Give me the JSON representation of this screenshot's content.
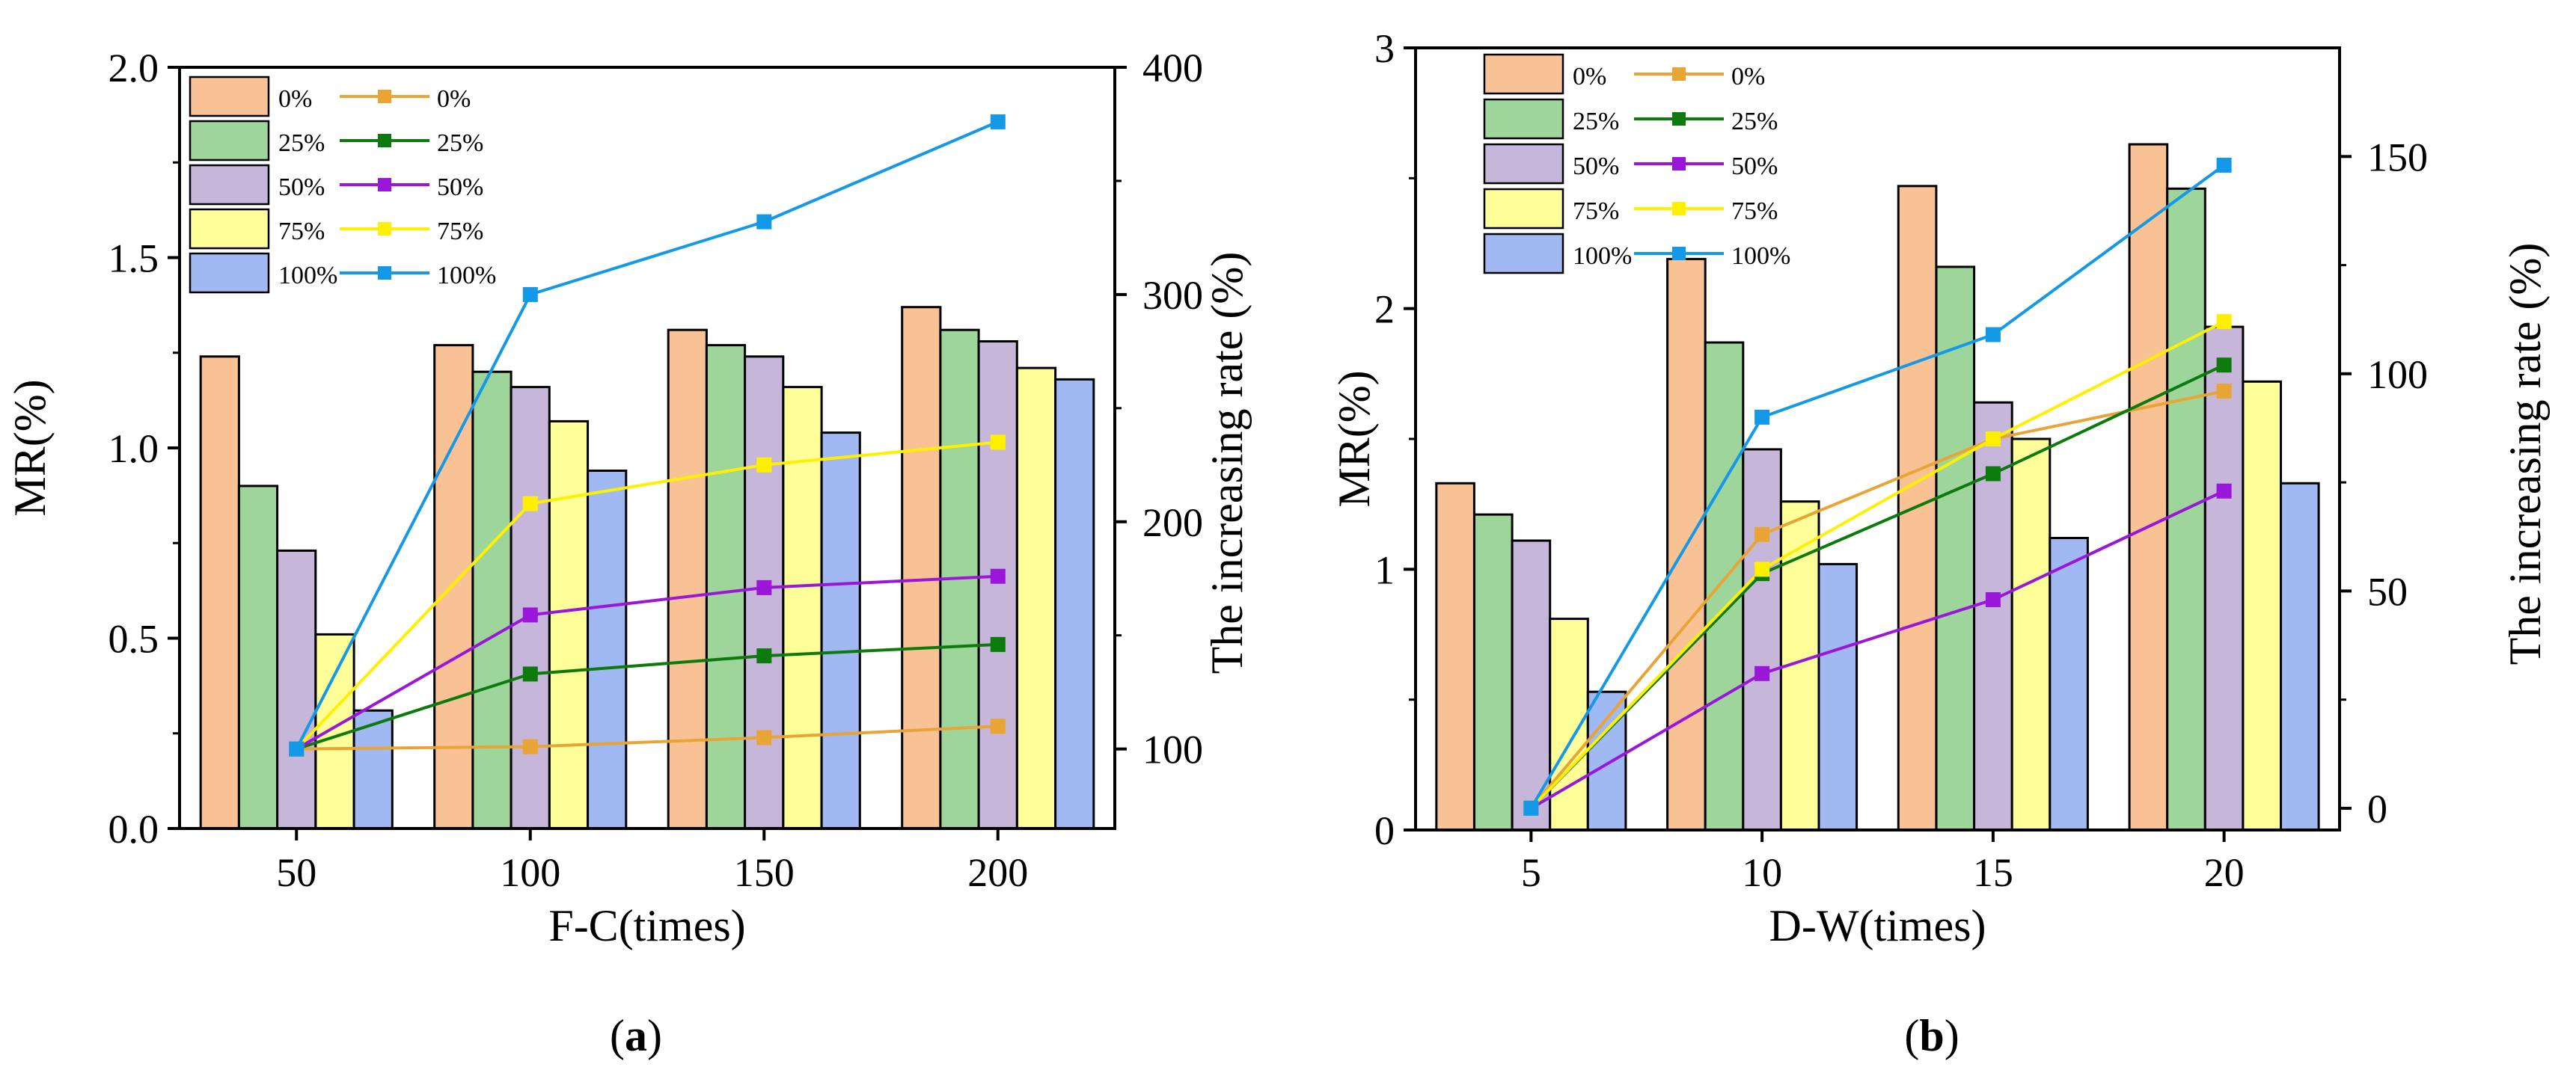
{
  "colors": {
    "bar": [
      "#F9C294",
      "#9DD59B",
      "#C6B6DA",
      "#FFFF99",
      "#A0B9F2"
    ],
    "line": [
      "#E8A435",
      "#0D7A0D",
      "#9A17D9",
      "#FFF000",
      "#1499E8"
    ]
  },
  "chart_data": [
    {
      "type": "bar+line",
      "panel_label": "(a)",
      "panel_letter": "a",
      "xlabel": "F-C(times)",
      "ylabel": "MR(%)",
      "y2label": "The increasing rate (%)",
      "categories": [
        "50",
        "100",
        "150",
        "200"
      ],
      "ylim": [
        0,
        2.0
      ],
      "yticks": [
        "0.0",
        "0.5",
        "1.0",
        "1.5",
        "2.0"
      ],
      "y2lim": [
        65,
        400
      ],
      "y2ticks": [
        "100",
        "200",
        "300",
        "400"
      ],
      "legend_position": "top-left",
      "bar_series": [
        {
          "name": "0%",
          "values": [
            1.24,
            1.27,
            1.31,
            1.37
          ]
        },
        {
          "name": "25%",
          "values": [
            0.9,
            1.2,
            1.27,
            1.31
          ]
        },
        {
          "name": "50%",
          "values": [
            0.73,
            1.16,
            1.24,
            1.28
          ]
        },
        {
          "name": "75%",
          "values": [
            0.51,
            1.07,
            1.16,
            1.21
          ]
        },
        {
          "name": "100%",
          "values": [
            0.31,
            0.94,
            1.04,
            1.18
          ]
        }
      ],
      "line_series": [
        {
          "name": "0%",
          "values": [
            100,
            101,
            105,
            110
          ]
        },
        {
          "name": "25%",
          "values": [
            100,
            133,
            141,
            146
          ]
        },
        {
          "name": "50%",
          "values": [
            100,
            159,
            171,
            176
          ]
        },
        {
          "name": "75%",
          "values": [
            100,
            208,
            225,
            235
          ]
        },
        {
          "name": "100%",
          "values": [
            100,
            300,
            332,
            376
          ]
        }
      ]
    },
    {
      "type": "bar+line",
      "panel_label": "(b)",
      "panel_letter": "b",
      "xlabel": "D-W(times)",
      "ylabel": "MR(%)",
      "y2label": "The increasing rate (%)",
      "categories": [
        "5",
        "10",
        "15",
        "20"
      ],
      "ylim": [
        0,
        3
      ],
      "yticks": [
        "0",
        "1",
        "2",
        "3"
      ],
      "y2lim": [
        -5,
        175
      ],
      "y2ticks": [
        "0",
        "50",
        "100",
        "150"
      ],
      "legend_position": "top-left",
      "bar_series": [
        {
          "name": "0%",
          "values": [
            1.33,
            2.19,
            2.47,
            2.63
          ]
        },
        {
          "name": "25%",
          "values": [
            1.21,
            1.87,
            2.16,
            2.46
          ]
        },
        {
          "name": "50%",
          "values": [
            1.11,
            1.46,
            1.64,
            1.93
          ]
        },
        {
          "name": "75%",
          "values": [
            0.81,
            1.26,
            1.5,
            1.72
          ]
        },
        {
          "name": "100%",
          "values": [
            0.53,
            1.02,
            1.12,
            1.33
          ]
        }
      ],
      "line_series": [
        {
          "name": "0%",
          "values": [
            0,
            63,
            85,
            96
          ]
        },
        {
          "name": "25%",
          "values": [
            0,
            54,
            77,
            102
          ]
        },
        {
          "name": "50%",
          "values": [
            0,
            31,
            48,
            73
          ]
        },
        {
          "name": "75%",
          "values": [
            0,
            55,
            85,
            112
          ]
        },
        {
          "name": "100%",
          "values": [
            0,
            90,
            109,
            148
          ]
        }
      ]
    }
  ]
}
